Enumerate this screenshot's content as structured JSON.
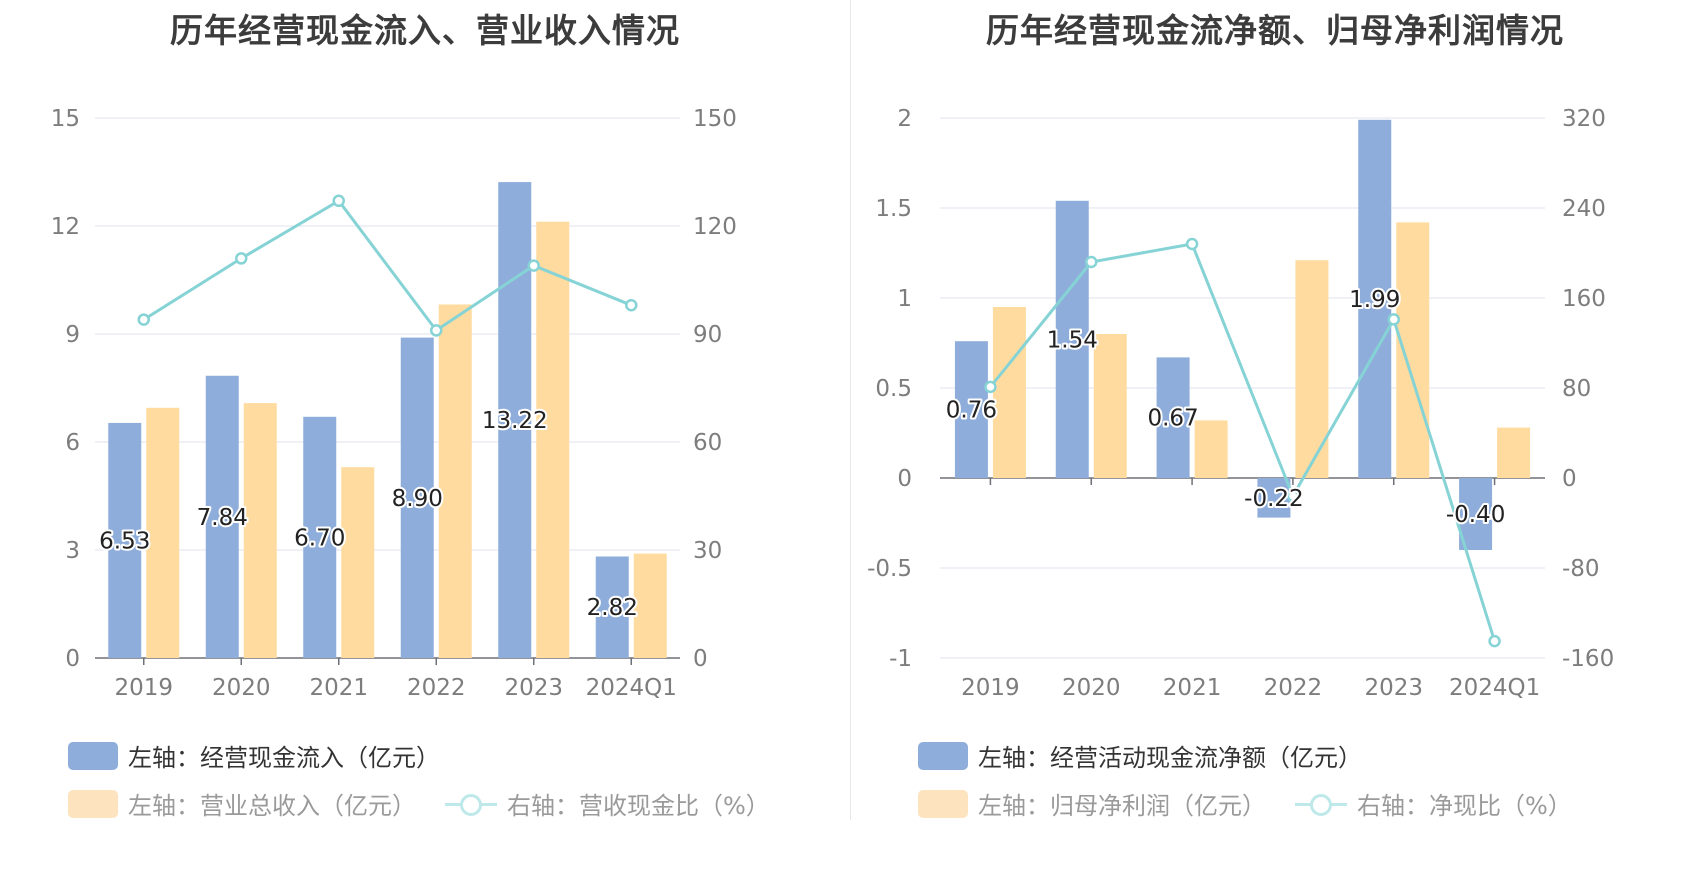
{
  "charts": [
    {
      "title": "历年经营现金流入、营业收入情况",
      "legend": [
        {
          "label": "左轴：经营现金流入（亿元）",
          "kind": "bar",
          "color": "#8eaddb",
          "faded": false
        },
        {
          "label": "左轴：营业总收入（亿元）",
          "kind": "bar",
          "color": "#fde4bf",
          "faded": true
        },
        {
          "label": "右轴：营收现金比（%）",
          "kind": "line",
          "color": "#bfe8ea",
          "faded": true
        }
      ]
    },
    {
      "title": "历年经营现金流净额、归母净利润情况",
      "legend": [
        {
          "label": "左轴：经营活动现金流净额（亿元）",
          "kind": "bar",
          "color": "#8eaddb",
          "faded": false
        },
        {
          "label": "左轴：归母净利润（亿元）",
          "kind": "bar",
          "color": "#fde4bf",
          "faded": true
        },
        {
          "label": "右轴：净现比（%）",
          "kind": "line",
          "color": "#bfe8ea",
          "faded": true
        }
      ]
    }
  ],
  "chart_data": [
    {
      "type": "bar",
      "title": "历年经营现金流入、营业收入情况",
      "categories": [
        "2019",
        "2020",
        "2021",
        "2022",
        "2023",
        "2024Q1"
      ],
      "y_left": {
        "ticks": [
          0,
          3,
          6,
          9,
          12,
          15
        ],
        "range": [
          0,
          15
        ]
      },
      "y_right": {
        "ticks": [
          0,
          30,
          60,
          90,
          120,
          150
        ],
        "range": [
          0,
          150
        ]
      },
      "series": [
        {
          "name": "左轴：经营现金流入（亿元）",
          "kind": "bar",
          "axis": "left",
          "color": "#8eaddb",
          "values": [
            6.53,
            7.84,
            6.7,
            8.9,
            13.22,
            2.82
          ],
          "labels": [
            "6.53",
            "7.84",
            "6.70",
            "8.90",
            "13.22",
            "2.82"
          ]
        },
        {
          "name": "左轴：营业总收入（亿元）",
          "kind": "bar",
          "axis": "left",
          "color": "#ffdb9f",
          "values": [
            6.95,
            7.08,
            5.3,
            9.82,
            12.12,
            2.9
          ]
        },
        {
          "name": "右轴：营收现金比（%）",
          "kind": "line",
          "axis": "right",
          "color": "#86d3d6",
          "values": [
            94,
            111,
            127,
            91,
            109,
            98
          ]
        }
      ]
    },
    {
      "type": "bar",
      "title": "历年经营现金流净额、归母净利润情况",
      "categories": [
        "2019",
        "2020",
        "2021",
        "2022",
        "2023",
        "2024Q1"
      ],
      "y_left": {
        "ticks": [
          -1,
          -0.5,
          0,
          0.5,
          1,
          1.5,
          2
        ],
        "tick_labels": [
          "-1",
          "-0.5",
          "0",
          "0.5",
          "1",
          "1.5",
          "2"
        ],
        "range": [
          -1,
          2
        ]
      },
      "y_right": {
        "ticks": [
          -160,
          -80,
          0,
          80,
          160,
          240,
          320
        ],
        "range": [
          -160,
          320
        ]
      },
      "series": [
        {
          "name": "左轴：经营活动现金流净额（亿元）",
          "kind": "bar",
          "axis": "left",
          "color": "#8eaddb",
          "values": [
            0.76,
            1.54,
            0.67,
            -0.22,
            1.99,
            -0.4
          ],
          "labels": [
            "0.76",
            "1.54",
            "0.67",
            "-0.22",
            "1.99",
            "-0.40"
          ]
        },
        {
          "name": "左轴：归母净利润（亿元）",
          "kind": "bar",
          "axis": "left",
          "color": "#ffdb9f",
          "values": [
            0.95,
            0.8,
            0.32,
            1.21,
            1.42,
            0.28
          ]
        },
        {
          "name": "右轴：净现比（%）",
          "kind": "line",
          "axis": "right",
          "color": "#86d3d6",
          "values": [
            81,
            192,
            208,
            -16,
            141,
            -145
          ]
        }
      ]
    }
  ]
}
